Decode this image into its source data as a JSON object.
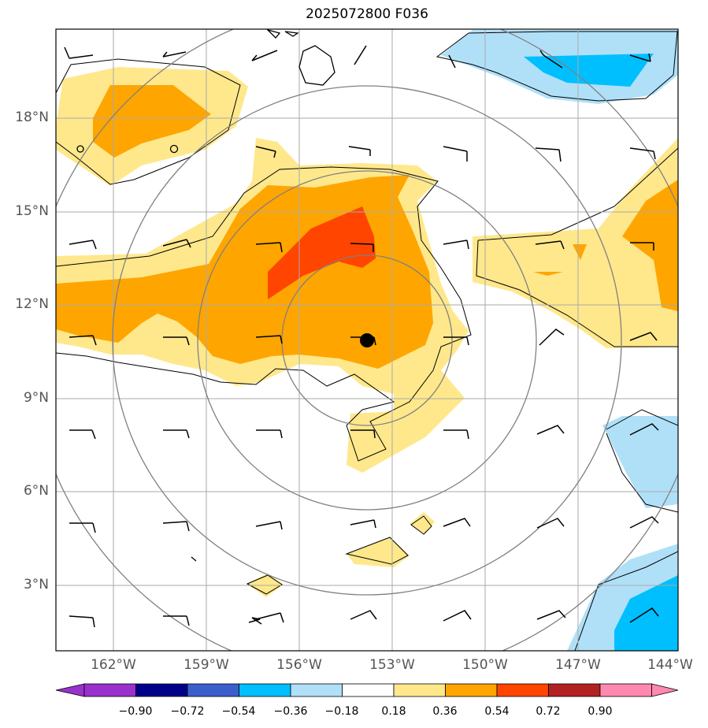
{
  "title": "2025072800 F036",
  "y_ticks": [
    "18°N",
    "15°N",
    "12°N",
    "9°N",
    "6°N",
    "3°N"
  ],
  "x_ticks": [
    "162°W",
    "159°W",
    "156°W",
    "153°W",
    "150°W",
    "147°W",
    "144°W"
  ],
  "colorbar": {
    "labels": [
      "−0.90",
      "−0.72",
      "−0.54",
      "−0.36",
      "−0.18",
      "0.18",
      "0.36",
      "0.54",
      "0.72",
      "0.90"
    ],
    "colors": [
      "#9932cc",
      "#00008b",
      "#3a5fcd",
      "#00bfff",
      "#b0e0f8",
      "#ffffff",
      "#ffe88c",
      "#ffa500",
      "#ff4500",
      "#b22222",
      "#ff88b0"
    ]
  },
  "map": {
    "lon_range": [
      -163.8,
      -143.9
    ],
    "lat_range": [
      0.8,
      20.7
    ],
    "center_marker": {
      "lon": -153.8,
      "lat": 10.9
    }
  }
}
